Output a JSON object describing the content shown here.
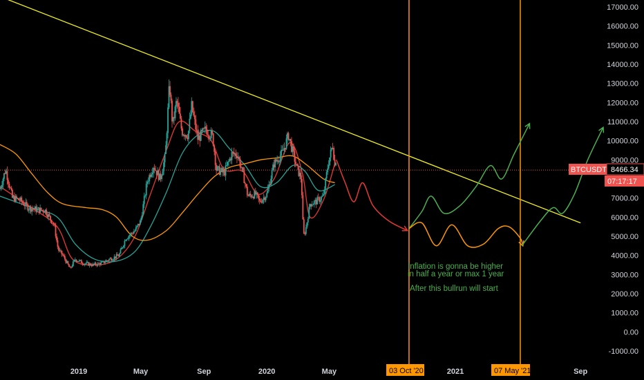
{
  "chart_data": {
    "type": "candlestick",
    "symbol": "BTCUSDT",
    "last_price": "8466.34",
    "countdown": "07:17:17",
    "y_axis": {
      "range": [
        -1000,
        17000
      ],
      "ticks": [
        "17000.00",
        "16000.00",
        "15000.00",
        "14000.00",
        "13000.00",
        "12000.00",
        "11000.00",
        "10000.00",
        "9000.00",
        "8000.00",
        "7000.00",
        "6000.00",
        "5000.00",
        "4000.00",
        "3000.00",
        "2000.00",
        "1000.00",
        "0.00",
        "-1000.00"
      ]
    },
    "x_axis": {
      "range": [
        "2018-08-01",
        "2021-10-15"
      ],
      "ticks": [
        {
          "label": "2019",
          "date": "2019-01-01"
        },
        {
          "label": "May",
          "date": "2019-05-01"
        },
        {
          "label": "Sep",
          "date": "2019-09-01"
        },
        {
          "label": "2020",
          "date": "2020-01-01"
        },
        {
          "label": "May",
          "date": "2020-05-01"
        },
        {
          "label": "S",
          "date": "2020-09-01"
        },
        {
          "label": "2021",
          "date": "2021-01-01"
        },
        {
          "label": "Sep",
          "date": "2021-09-01"
        }
      ],
      "highlight_labels": [
        {
          "label": "03 Oct '20",
          "date": "2020-10-03"
        },
        {
          "label": "07 May '21",
          "date": "2021-05-07"
        }
      ]
    },
    "price_path": [
      [
        "2018-08-01",
        7500
      ],
      [
        "2018-08-12",
        8500
      ],
      [
        "2018-08-25",
        7000
      ],
      [
        "2018-09-08",
        6900
      ],
      [
        "2018-09-25",
        6500
      ],
      [
        "2018-10-10",
        6400
      ],
      [
        "2018-10-28",
        6350
      ],
      [
        "2018-11-14",
        5600
      ],
      [
        "2018-11-22",
        4300
      ],
      [
        "2018-12-01",
        4000
      ],
      [
        "2018-12-15",
        3300
      ],
      [
        "2018-12-25",
        3800
      ],
      [
        "2019-01-10",
        3600
      ],
      [
        "2019-01-28",
        3500
      ],
      [
        "2019-02-15",
        3600
      ],
      [
        "2019-03-01",
        3800
      ],
      [
        "2019-03-20",
        4000
      ],
      [
        "2019-04-02",
        4900
      ],
      [
        "2019-04-20",
        5300
      ],
      [
        "2019-05-01",
        5800
      ],
      [
        "2019-05-14",
        7900
      ],
      [
        "2019-05-26",
        8700
      ],
      [
        "2019-06-08",
        8000
      ],
      [
        "2019-06-18",
        9200
      ],
      [
        "2019-06-26",
        13000
      ],
      [
        "2019-07-02",
        10800
      ],
      [
        "2019-07-10",
        12100
      ],
      [
        "2019-07-20",
        10500
      ],
      [
        "2019-08-01",
        10300
      ],
      [
        "2019-08-08",
        11800
      ],
      [
        "2019-08-20",
        10100
      ],
      [
        "2019-09-05",
        10600
      ],
      [
        "2019-09-18",
        10200
      ],
      [
        "2019-09-25",
        8500
      ],
      [
        "2019-10-10",
        8300
      ],
      [
        "2019-10-25",
        9300
      ],
      [
        "2019-11-05",
        9300
      ],
      [
        "2019-11-18",
        8000
      ],
      [
        "2019-11-25",
        7100
      ],
      [
        "2019-12-10",
        7200
      ],
      [
        "2019-12-18",
        6800
      ],
      [
        "2020-01-01",
        7200
      ],
      [
        "2020-01-15",
        8800
      ],
      [
        "2020-02-01",
        9400
      ],
      [
        "2020-02-12",
        10300
      ],
      [
        "2020-02-28",
        8600
      ],
      [
        "2020-03-08",
        8000
      ],
      [
        "2020-03-12",
        5000
      ],
      [
        "2020-03-16",
        5300
      ],
      [
        "2020-03-25",
        6700
      ],
      [
        "2020-04-05",
        6800
      ],
      [
        "2020-04-20",
        7100
      ],
      [
        "2020-04-29",
        8800
      ],
      [
        "2020-05-08",
        9800
      ],
      [
        "2020-05-12",
        8700
      ],
      [
        "2020-05-15",
        9200
      ]
    ],
    "ma_lines": [
      {
        "name": "red",
        "color": "#e53935",
        "points": [
          [
            "2018-08-01",
            7600
          ],
          [
            "2018-10-01",
            6500
          ],
          [
            "2018-11-20",
            5500
          ],
          [
            "2018-12-20",
            3800
          ],
          [
            "2019-02-01",
            3500
          ],
          [
            "2019-03-15",
            3800
          ],
          [
            "2019-04-20",
            5000
          ],
          [
            "2019-05-20",
            7200
          ],
          [
            "2019-06-20",
            9500
          ],
          [
            "2019-07-15",
            11000
          ],
          [
            "2019-08-15",
            10500
          ],
          [
            "2019-09-15",
            10000
          ],
          [
            "2019-10-10",
            8500
          ],
          [
            "2019-11-15",
            8400
          ],
          [
            "2019-12-15",
            7200
          ],
          [
            "2020-01-15",
            8000
          ],
          [
            "2020-02-15",
            9900
          ],
          [
            "2020-03-10",
            8300
          ],
          [
            "2020-03-25",
            6000
          ],
          [
            "2020-04-20",
            6900
          ],
          [
            "2020-05-12",
            8800
          ]
        ]
      },
      {
        "name": "green",
        "color": "#26a69a",
        "points": [
          [
            "2018-08-01",
            7100
          ],
          [
            "2018-10-01",
            6500
          ],
          [
            "2018-11-20",
            6000
          ],
          [
            "2018-12-25",
            4600
          ],
          [
            "2019-02-01",
            3800
          ],
          [
            "2019-03-15",
            3700
          ],
          [
            "2019-04-20",
            4200
          ],
          [
            "2019-05-20",
            5500
          ],
          [
            "2019-06-20",
            7300
          ],
          [
            "2019-07-20",
            9300
          ],
          [
            "2019-08-20",
            10300
          ],
          [
            "2019-09-20",
            10500
          ],
          [
            "2019-10-20",
            9600
          ],
          [
            "2019-11-20",
            8700
          ],
          [
            "2019-12-20",
            7600
          ],
          [
            "2020-01-20",
            7800
          ],
          [
            "2020-02-20",
            8700
          ],
          [
            "2020-03-15",
            8400
          ],
          [
            "2020-04-10",
            7400
          ],
          [
            "2020-05-12",
            7700
          ]
        ]
      },
      {
        "name": "orange",
        "color": "#ff9800",
        "points": [
          [
            "2018-08-01",
            9800
          ],
          [
            "2018-09-01",
            9300
          ],
          [
            "2018-10-01",
            8300
          ],
          [
            "2018-11-01",
            7300
          ],
          [
            "2018-12-01",
            6700
          ],
          [
            "2019-01-15",
            6500
          ],
          [
            "2019-02-15",
            6400
          ],
          [
            "2019-03-15",
            6000
          ],
          [
            "2019-04-15",
            5000
          ],
          [
            "2019-05-15",
            4800
          ],
          [
            "2019-06-20",
            5300
          ],
          [
            "2019-07-20",
            6200
          ],
          [
            "2019-08-20",
            7200
          ],
          [
            "2019-09-20",
            8100
          ],
          [
            "2019-10-20",
            8600
          ],
          [
            "2019-11-20",
            8800
          ],
          [
            "2019-12-20",
            9000
          ],
          [
            "2020-01-20",
            9100
          ],
          [
            "2020-02-20",
            9200
          ],
          [
            "2020-03-20",
            8700
          ],
          [
            "2020-04-20",
            8000
          ],
          [
            "2020-05-12",
            7800
          ]
        ]
      }
    ],
    "trendline": {
      "color": "#f0f020",
      "from": [
        "2018-08-05",
        17500
      ],
      "to": [
        "2021-09-01",
        5700
      ]
    },
    "horizontal_level": {
      "value": 8466.34,
      "color": "#ef5350"
    },
    "vertical_markers": [
      {
        "date": "2020-10-03",
        "color": "#ff9800"
      },
      {
        "date": "2021-05-07",
        "color": "#ff9800"
      }
    ],
    "projections": [
      {
        "name": "red-drop",
        "color": "#e53935",
        "points": [
          [
            "2020-05-15",
            9000
          ],
          [
            "2020-06-01",
            7800
          ],
          [
            "2020-06-18",
            6800
          ],
          [
            "2020-07-05",
            7800
          ],
          [
            "2020-07-25",
            6600
          ],
          [
            "2020-08-25",
            5800
          ],
          [
            "2020-09-30",
            5300
          ]
        ]
      },
      {
        "name": "green-path",
        "color": "#4caf50",
        "points": [
          [
            "2020-10-03",
            5400
          ],
          [
            "2020-10-28",
            6300
          ],
          [
            "2020-11-15",
            7100
          ],
          [
            "2020-12-10",
            6200
          ],
          [
            "2021-01-10",
            6600
          ],
          [
            "2021-02-10",
            7600
          ],
          [
            "2021-03-10",
            8700
          ],
          [
            "2021-04-01",
            8000
          ],
          [
            "2021-04-25",
            9300
          ],
          [
            "2021-05-25",
            10900
          ]
        ]
      },
      {
        "name": "orange-path",
        "color": "#ff9800",
        "points": [
          [
            "2020-10-03",
            5400
          ],
          [
            "2020-10-28",
            5700
          ],
          [
            "2020-11-25",
            4500
          ],
          [
            "2020-12-25",
            5600
          ],
          [
            "2021-01-25",
            4500
          ],
          [
            "2021-02-25",
            4600
          ],
          [
            "2021-03-25",
            5400
          ],
          [
            "2021-04-15",
            5500
          ],
          [
            "2021-05-07",
            4900
          ],
          [
            "2021-05-12",
            4500
          ]
        ]
      },
      {
        "name": "green-path-2",
        "color": "#4caf50",
        "points": [
          [
            "2021-05-10",
            4500
          ],
          [
            "2021-06-15",
            5800
          ],
          [
            "2021-07-10",
            6500
          ],
          [
            "2021-07-28",
            6200
          ],
          [
            "2021-08-20",
            7200
          ],
          [
            "2021-09-15",
            9000
          ],
          [
            "2021-10-15",
            10700
          ]
        ]
      }
    ],
    "annotations": [
      "Inflation is gonna be higher",
      "in half a year or max 1 year",
      "After this bullrun will start"
    ]
  }
}
